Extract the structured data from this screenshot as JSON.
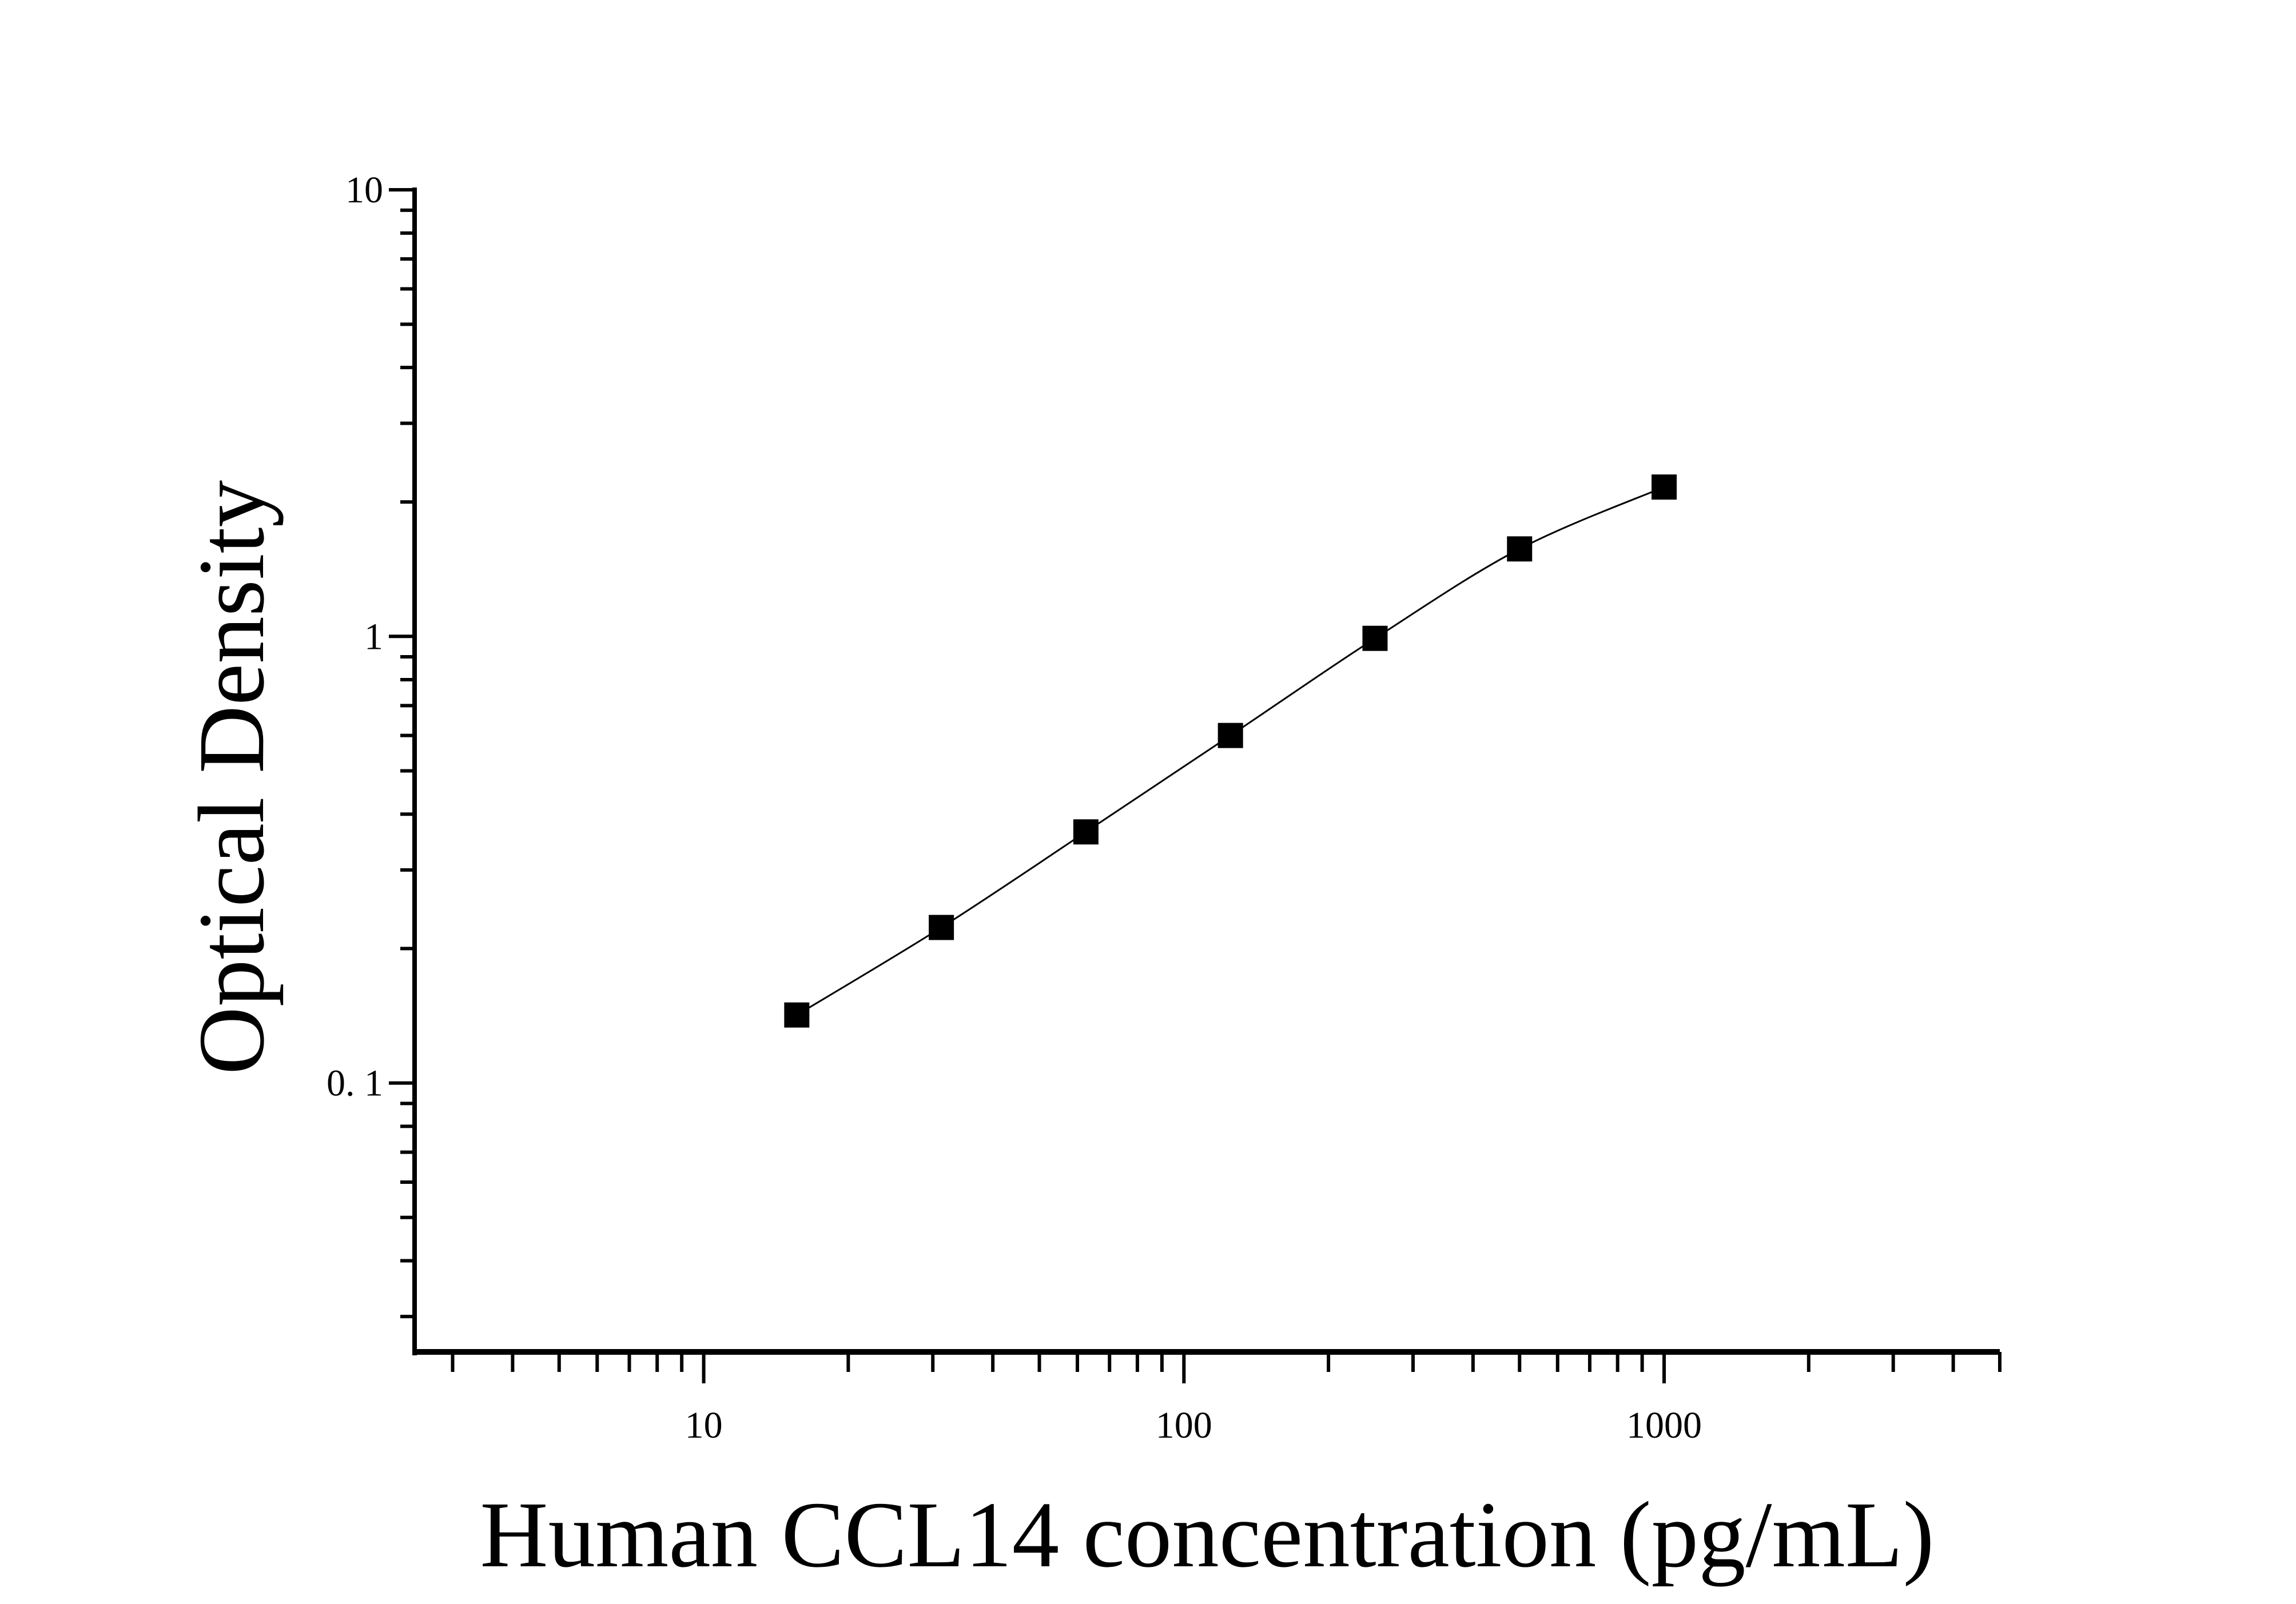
{
  "chart_data": {
    "type": "scatter",
    "title": "",
    "xlabel": "Human CCL14 concentration (pg/mL)",
    "ylabel": "Optical Density",
    "x_scale": "log",
    "y_scale": "log",
    "xlim": [
      2.5,
      5000
    ],
    "ylim": [
      0.025,
      10
    ],
    "x_ticks": [
      {
        "value": 10,
        "label": "10"
      },
      {
        "value": 100,
        "label": "100"
      },
      {
        "value": 1000,
        "label": "1000"
      }
    ],
    "y_ticks": [
      {
        "value": 0.1,
        "label": "0. 1"
      },
      {
        "value": 1,
        "label": "1"
      },
      {
        "value": 10,
        "label": "10"
      }
    ],
    "grid": false,
    "marker": "square",
    "fit_curve": true,
    "color": "#000000",
    "series": [
      {
        "x": [
          15.625,
          31.25,
          62.5,
          125,
          250,
          500,
          1000
        ],
        "y": [
          0.142,
          0.223,
          0.365,
          0.6,
          0.99,
          1.57,
          2.16
        ]
      }
    ]
  }
}
